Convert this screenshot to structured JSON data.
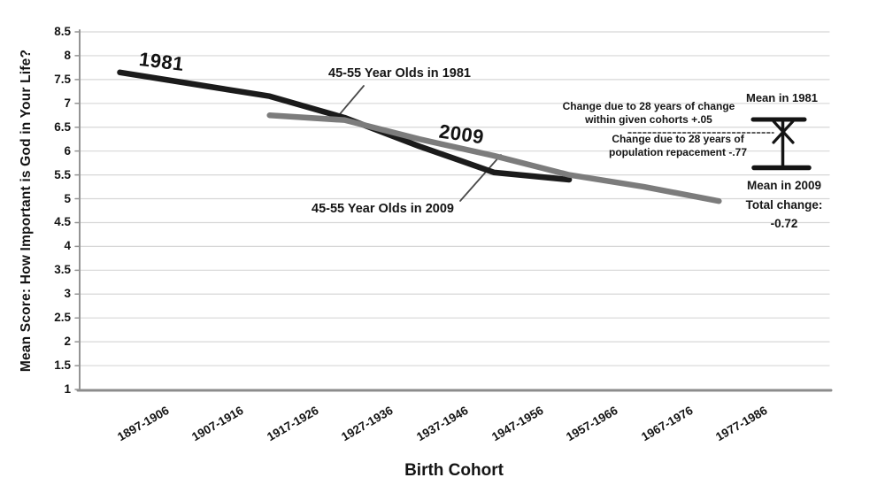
{
  "chart_data": {
    "type": "line",
    "title": "",
    "xlabel": "Birth Cohort",
    "ylabel": "Mean Score: How Important is God in Your Life?",
    "categories": [
      "1897-1906",
      "1907-1916",
      "1917-1926",
      "1927-1936",
      "1937-1946",
      "1947-1956",
      "1957-1966",
      "1967-1976",
      "1977-1986"
    ],
    "ylim": [
      1,
      8.5
    ],
    "y_tick_step": 0.5,
    "y_ticks": [
      "8.5",
      "8",
      "7.5",
      "7",
      "6.5",
      "6",
      "5.5",
      "5",
      "4.5",
      "4",
      "3.5",
      "3",
      "2.5",
      "2",
      "1.5",
      "1"
    ],
    "grid": "horizontal",
    "legend_position": "inline-labels",
    "series": [
      {
        "name": "1981",
        "color": "#1b1b1b",
        "start_index": 0,
        "values": [
          7.65,
          7.4,
          7.15,
          6.7,
          6.1,
          5.55,
          5.4
        ]
      },
      {
        "name": "2009",
        "color": "#7c7c7c",
        "start_index": 2,
        "values": [
          6.75,
          6.65,
          6.25,
          5.9,
          5.5,
          5.25,
          4.95
        ]
      }
    ],
    "annotations": {
      "series_label_1981": "1981",
      "series_label_2009": "2009",
      "callout_1981": "45-55 Year Olds in 1981",
      "callout_2009": "45-55 Year Olds in 2009",
      "within_cohort_change": [
        "Change due to 28 years of change",
        "within given cohorts  +.05"
      ],
      "population_replacement": [
        "Change due to 28 years of",
        "population repacement  -.77"
      ],
      "mean_1981": "Mean in 1981",
      "mean_2009": "Mean in 2009",
      "total_change": [
        "Total change:",
        "-0.72"
      ]
    },
    "colors": {
      "gridline": "#d7d7d7",
      "axis": "#949494",
      "annotation_ink": "#141414"
    }
  }
}
